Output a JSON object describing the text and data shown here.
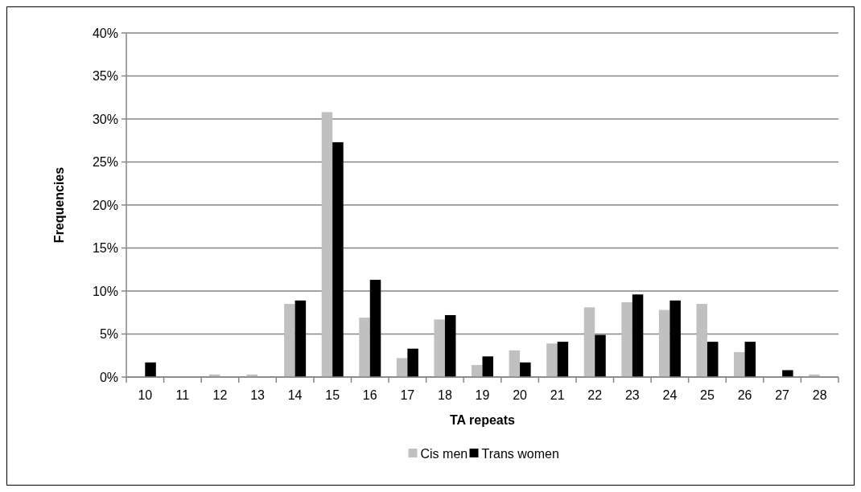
{
  "chart_data": {
    "type": "bar",
    "xlabel": "TA repeats",
    "ylabel": "Frequencies",
    "categories": [
      "10",
      "11",
      "12",
      "13",
      "14",
      "15",
      "16",
      "17",
      "18",
      "19",
      "20",
      "21",
      "22",
      "23",
      "24",
      "25",
      "26",
      "27",
      "28"
    ],
    "series": [
      {
        "name": "Cis men",
        "color": "#c0c0c0",
        "values": [
          0,
          0,
          0.3,
          0.3,
          8.5,
          30.8,
          6.9,
          2.2,
          6.7,
          1.4,
          3.1,
          3.9,
          8.1,
          8.7,
          7.8,
          8.5,
          2.9,
          0,
          0.3
        ]
      },
      {
        "name": "Trans women",
        "color": "#000000",
        "values": [
          1.7,
          0,
          0,
          0,
          8.9,
          27.3,
          11.3,
          3.3,
          7.2,
          2.4,
          1.7,
          4.1,
          4.9,
          9.6,
          8.9,
          4.1,
          4.1,
          0.8,
          0
        ]
      }
    ],
    "ylim": [
      0,
      40
    ],
    "yticks": [
      {
        "value": 0,
        "label": "0%"
      },
      {
        "value": 5,
        "label": "5%"
      },
      {
        "value": 10,
        "label": "10%"
      },
      {
        "value": 15,
        "label": "15%"
      },
      {
        "value": 20,
        "label": "20%"
      },
      {
        "value": 25,
        "label": "25%"
      },
      {
        "value": 30,
        "label": "30%"
      },
      {
        "value": 35,
        "label": "35%"
      },
      {
        "value": 40,
        "label": "40%"
      }
    ],
    "grid": "y",
    "legend": "bottom"
  }
}
